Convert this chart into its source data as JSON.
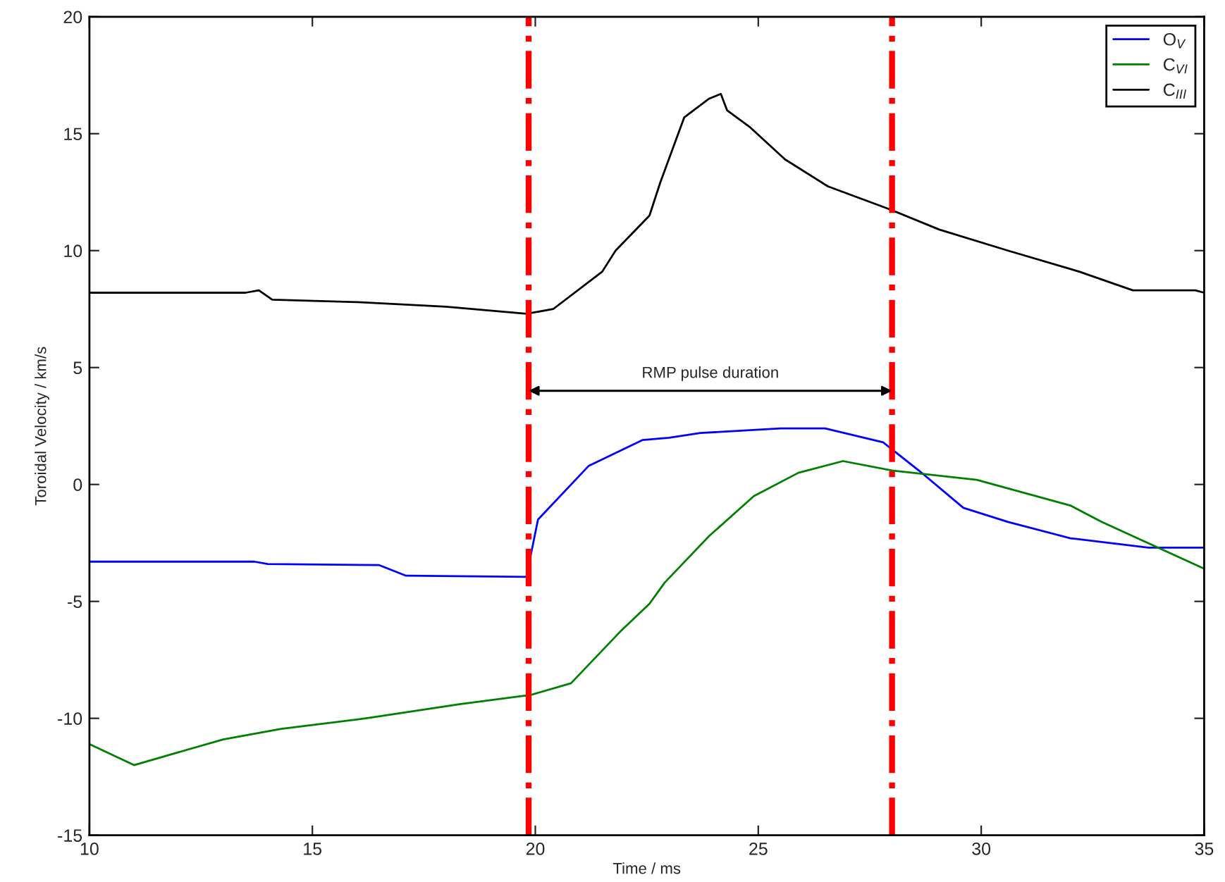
{
  "chart_data": {
    "type": "line",
    "xlabel": "Time / ms",
    "ylabel": "Toroidal Velocity / km/s",
    "xlim": [
      10,
      35
    ],
    "ylim": [
      -15,
      20
    ],
    "xticks": [
      10,
      15,
      20,
      25,
      30,
      35
    ],
    "yticks": [
      -15,
      -10,
      -5,
      0,
      5,
      10,
      15,
      20
    ],
    "grid": false,
    "legend": "top right",
    "marker": "none",
    "line_style": "solid",
    "series": [
      {
        "name": "O$_{V}$",
        "color": "#0000ff",
        "x": [
          10,
          13.7,
          14.0,
          16.5,
          17.1,
          19.8,
          19.9,
          20.06,
          21.2,
          22.4,
          23.0,
          23.7,
          25.5,
          26.5,
          27.8,
          28.6,
          29.6,
          30.6,
          32.0,
          33.75,
          35
        ],
        "values": [
          -3.3,
          -3.3,
          -3.4,
          -3.45,
          -3.9,
          -3.95,
          -3.0,
          -1.5,
          0.8,
          1.9,
          2.0,
          2.2,
          2.4,
          2.4,
          1.8,
          0.6,
          -1.0,
          -1.6,
          -2.3,
          -2.7,
          -2.7
        ]
      },
      {
        "name": "C$_{VI}$",
        "color": "#008000",
        "x": [
          10,
          11.0,
          13.0,
          14.3,
          16.2,
          18.3,
          19.9,
          20.8,
          21.9,
          22.56,
          22.9,
          23.9,
          24.9,
          25.9,
          26.9,
          28.0,
          29.9,
          32.0,
          32.7,
          35
        ],
        "values": [
          -11.1,
          -12.0,
          -10.9,
          -10.45,
          -10.0,
          -9.4,
          -9.0,
          -8.5,
          -6.3,
          -5.1,
          -4.2,
          -2.2,
          -0.5,
          0.5,
          1.0,
          0.6,
          0.2,
          -0.9,
          -1.6,
          -3.6
        ]
      },
      {
        "name": "C$_{III}$",
        "color": "#000000",
        "x": [
          10,
          13.5,
          13.8,
          14.1,
          16.0,
          18.0,
          19.8,
          20.4,
          21.5,
          21.8,
          22.56,
          22.8,
          23.34,
          23.9,
          24.16,
          24.3,
          24.8,
          25.6,
          26.56,
          27.9,
          29.06,
          30.6,
          32.2,
          33.4,
          34.8,
          35
        ],
        "values": [
          8.2,
          8.2,
          8.3,
          7.9,
          7.8,
          7.6,
          7.3,
          7.5,
          9.1,
          10.0,
          11.5,
          12.9,
          15.7,
          16.5,
          16.7,
          16.0,
          15.3,
          13.9,
          12.75,
          11.8,
          10.9,
          10.0,
          9.1,
          8.3,
          8.3,
          8.2
        ]
      }
    ],
    "ref_lines": [
      {
        "axis": "x",
        "value": 19.85,
        "color": "#ff0000",
        "line_style": "dashdot"
      },
      {
        "axis": "x",
        "value": 28.0,
        "color": "#ff0000",
        "line_style": "dashdot"
      }
    ],
    "annotations": [
      "RMP pulse duration"
    ]
  }
}
